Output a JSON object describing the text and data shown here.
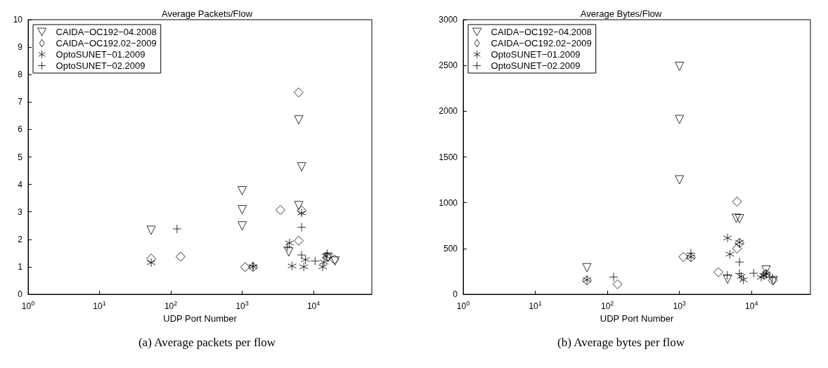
{
  "chart_data": [
    {
      "type": "scatter",
      "title": "Average Packets/Flow",
      "xlabel": "UDP Port Number",
      "annotations": [
        "(a) Average packets per flow"
      ],
      "log": "x",
      "grid": false,
      "legend": "top left",
      "xlim": [
        1,
        65536
      ],
      "xticks": [
        {
          "value": 1,
          "label": "10$^{0}$"
        },
        {
          "value": 10,
          "label": "10$^{1}$"
        },
        {
          "value": 100,
          "label": "10$^{2}$"
        },
        {
          "value": 1000,
          "label": "10$^{3}$"
        },
        {
          "value": 10000,
          "label": "10$^{4}$"
        }
      ],
      "ylim": [
        0,
        10
      ],
      "yticks": [
        0,
        1,
        2,
        3,
        4,
        5,
        6,
        7,
        8,
        9,
        10
      ],
      "series": [
        {
          "name": "CAIDA−OC192−04.2008",
          "color": "#000000",
          "marker": "triangle",
          "x": [
            53,
            1000,
            1000,
            1000,
            4500,
            6200,
            6200,
            6800,
            16000,
            20000
          ],
          "values": [
            2.33,
            3.77,
            3.08,
            2.49,
            1.54,
            6.35,
            3.23,
            4.64,
            1.35,
            1.21
          ]
        },
        {
          "name": "CAIDA−OC192.02−2009",
          "color": "#000000",
          "marker": "diamond",
          "x": [
            53,
            137,
            1100,
            1420,
            3430,
            6170,
            6800,
            6200,
            15600,
            19500
          ],
          "values": [
            1.3,
            1.37,
            0.99,
            0.99,
            3.07,
            7.35,
            3.05,
            1.95,
            1.35,
            1.27
          ]
        },
        {
          "name": "OptoSUNET−01.2009",
          "color": "#000000",
          "marker": "star",
          "x": [
            53,
            1420,
            4600,
            5000,
            6800,
            7300,
            7700,
            13400,
            14000,
            15000
          ],
          "values": [
            1.15,
            1.01,
            1.87,
            1.03,
            2.96,
            1.0,
            1.26,
            1.0,
            1.17,
            1.39
          ]
        },
        {
          "name": "OptoSUNET−02.2009",
          "color": "#000000",
          "marker": "cross",
          "x": [
            122,
            1420,
            4300,
            6800,
            6800,
            10500,
            15500
          ],
          "values": [
            2.38,
            1.03,
            1.72,
            2.44,
            1.43,
            1.21,
            1.48
          ]
        }
      ]
    },
    {
      "type": "scatter",
      "title": "Average Bytes/Flow",
      "xlabel": "UDP Port Number",
      "annotations": [
        "(b) Average bytes per flow"
      ],
      "log": "x",
      "grid": false,
      "legend": "top left",
      "xlim": [
        1,
        65536
      ],
      "xticks": [
        {
          "value": 1,
          "label": "10$^{0}$"
        },
        {
          "value": 10,
          "label": "10$^{1}$"
        },
        {
          "value": 100,
          "label": "10$^{2}$"
        },
        {
          "value": 1000,
          "label": "10$^{3}$"
        },
        {
          "value": 10000,
          "label": "10$^{4}$"
        }
      ],
      "ylim": [
        0,
        3000
      ],
      "yticks": [
        0,
        500,
        1000,
        1500,
        2000,
        2500,
        3000
      ],
      "series": [
        {
          "name": "CAIDA−OC192−04.2008",
          "color": "#000000",
          "marker": "triangle",
          "x": [
            52,
            1000,
            1000,
            1000,
            4650,
            6150,
            6800,
            15900,
            20000
          ],
          "values": [
            290,
            2490,
            1910,
            1250,
            165,
            830,
            825,
            265,
            150
          ]
        },
        {
          "name": "CAIDA−OC192.02−2009",
          "color": "#000000",
          "marker": "diamond",
          "x": [
            52,
            138,
            1130,
            1440,
            3470,
            6280,
            6800,
            6280,
            15900,
            19700
          ],
          "values": [
            152,
            110,
            408,
            402,
            241,
            1012,
            560,
            500,
            222,
            152
          ]
        },
        {
          "name": "OptoSUNET−01.2009",
          "color": "#000000",
          "marker": "star",
          "x": [
            52,
            1440,
            4650,
            5000,
            6800,
            7200,
            7700,
            13600,
            14700,
            16000
          ],
          "values": [
            158,
            408,
            615,
            438,
            568,
            195,
            158,
            185,
            208,
            222
          ]
        },
        {
          "name": "OptoSUNET−02.2009",
          "color": "#000000",
          "marker": "cross",
          "x": [
            122,
            1440,
            4600,
            6800,
            6800,
            10700,
            15900,
            19500
          ],
          "values": [
            188,
            449,
            208,
            352,
            227,
            230,
            222,
            180
          ]
        }
      ]
    }
  ]
}
